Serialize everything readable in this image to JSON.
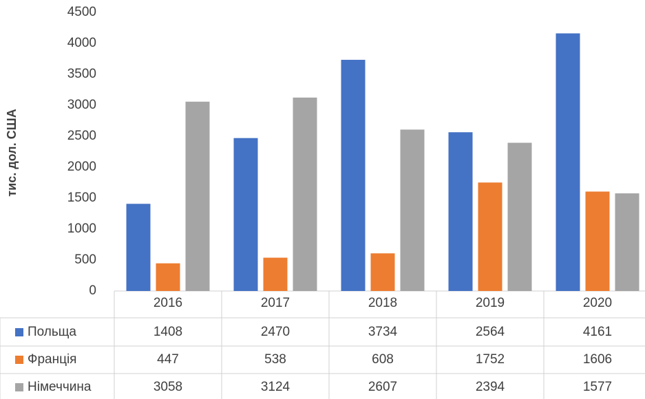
{
  "chart_data": {
    "type": "bar",
    "ylabel": "тис. дол. США",
    "categories": [
      "2016",
      "2017",
      "2018",
      "2019",
      "2020"
    ],
    "series": [
      {
        "name": "Польща",
        "color": "#4472c4",
        "values": [
          1408,
          2470,
          3734,
          2564,
          4161
        ]
      },
      {
        "name": "Франція",
        "color": "#ed7d31",
        "values": [
          447,
          538,
          608,
          1752,
          1606
        ]
      },
      {
        "name": "Німеччина",
        "color": "#a5a5a5",
        "values": [
          3058,
          3124,
          2607,
          2394,
          1577
        ]
      }
    ],
    "ylim": [
      0,
      4500
    ],
    "yticks": [
      0,
      500,
      1000,
      1500,
      2000,
      2500,
      3000,
      3500,
      4000,
      4500
    ],
    "grid": false,
    "data_table": true
  }
}
